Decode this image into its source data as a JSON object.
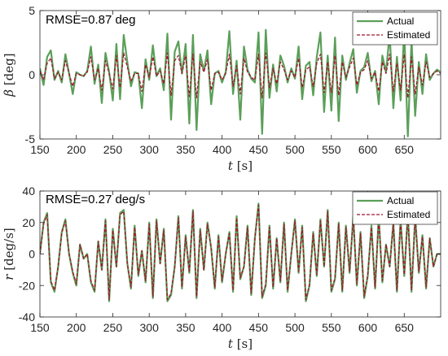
{
  "chart_data": [
    {
      "type": "line",
      "annotation": "RMSE=0.87 deg",
      "ylabel_symbol": "β",
      "ylabel_unit": "[deg]",
      "xlabel_symbol": "t",
      "xlabel_unit": "[s]",
      "xlim": [
        150,
        700
      ],
      "ylim": [
        -5,
        5
      ],
      "xticks": [
        150,
        200,
        250,
        300,
        350,
        400,
        450,
        500,
        550,
        600,
        650
      ],
      "yticks": [
        -5,
        0,
        5
      ],
      "legend_position": "top-right",
      "grid": false,
      "series": [
        {
          "name": "Actual",
          "style": "solid",
          "color": "#5b9f59",
          "x": [
            150,
            155,
            160,
            165,
            170,
            175,
            180,
            185,
            190,
            195,
            200,
            205,
            210,
            215,
            220,
            225,
            230,
            235,
            240,
            245,
            250,
            255,
            260,
            265,
            270,
            275,
            280,
            285,
            290,
            295,
            300,
            305,
            310,
            315,
            320,
            325,
            330,
            335,
            340,
            345,
            350,
            355,
            360,
            365,
            370,
            375,
            380,
            385,
            390,
            395,
            400,
            405,
            410,
            415,
            420,
            425,
            430,
            435,
            440,
            445,
            450,
            455,
            460,
            465,
            470,
            475,
            480,
            485,
            490,
            495,
            500,
            505,
            510,
            515,
            520,
            525,
            530,
            535,
            540,
            545,
            550,
            555,
            560,
            565,
            570,
            575,
            580,
            585,
            590,
            595,
            600,
            605,
            610,
            615,
            620,
            625,
            630,
            635,
            640,
            645,
            650,
            655,
            660,
            665,
            670,
            675,
            680,
            685,
            690,
            695,
            700
          ],
          "y": [
            0.5,
            -0.8,
            1.4,
            1.9,
            -0.4,
            0.3,
            -0.6,
            1.6,
            0.1,
            -1.5,
            0.2,
            0.0,
            -0.1,
            0.3,
            2.2,
            -0.7,
            0.8,
            -2.2,
            1.7,
            0.2,
            -2.0,
            2.4,
            -1.9,
            3.1,
            1.0,
            -0.9,
            0.2,
            0.1,
            -2.6,
            1.2,
            -0.4,
            2.3,
            -0.1,
            0.5,
            -1.2,
            3.2,
            -3.5,
            1.8,
            2.6,
            0.1,
            2.4,
            -3.8,
            3.1,
            -4.3,
            1.6,
            0.3,
            1.9,
            -2.3,
            0.1,
            0.3,
            -0.6,
            0.2,
            3.4,
            -1.5,
            1.1,
            -3.5,
            2.2,
            0.4,
            -0.3,
            -0.6,
            3.3,
            -4.6,
            3.5,
            -1.8,
            0.8,
            -1.3,
            1.5,
            0.7,
            -0.6,
            0.5,
            -0.3,
            2.2,
            -1.9,
            0.7,
            1.0,
            -1.6,
            1.4,
            3.3,
            -2.9,
            1.5,
            -2.8,
            2.9,
            -3.6,
            1.5,
            -0.4,
            0.9,
            2.0,
            -1.4,
            0.3,
            0.6,
            1.7,
            -0.5,
            0.3,
            -2.3,
            1.5,
            0.2,
            3.2,
            -2.6,
            1.4,
            -2.0,
            3.4,
            -4.8,
            2.7,
            -3.2,
            1.0,
            -1.5,
            1.6,
            -0.4,
            0.1,
            0.4,
            0.2
          ]
        },
        {
          "name": "Estimated",
          "style": "dashed",
          "color": "#a2142f",
          "x": [
            150,
            155,
            160,
            165,
            170,
            175,
            180,
            185,
            190,
            195,
            200,
            205,
            210,
            215,
            220,
            225,
            230,
            235,
            240,
            245,
            250,
            255,
            260,
            265,
            270,
            275,
            280,
            285,
            290,
            295,
            300,
            305,
            310,
            315,
            320,
            325,
            330,
            335,
            340,
            345,
            350,
            355,
            360,
            365,
            370,
            375,
            380,
            385,
            390,
            395,
            400,
            405,
            410,
            415,
            420,
            425,
            430,
            435,
            440,
            445,
            450,
            455,
            460,
            465,
            470,
            475,
            480,
            485,
            490,
            495,
            500,
            505,
            510,
            515,
            520,
            525,
            530,
            535,
            540,
            545,
            550,
            555,
            560,
            565,
            570,
            575,
            580,
            585,
            590,
            595,
            600,
            605,
            610,
            615,
            620,
            625,
            630,
            635,
            640,
            645,
            650,
            655,
            660,
            665,
            670,
            675,
            680,
            685,
            690,
            695,
            700
          ],
          "y": [
            0.3,
            -0.4,
            0.9,
            1.3,
            -0.3,
            0.2,
            -0.4,
            1.1,
            0.1,
            -0.9,
            0.1,
            0.0,
            -0.1,
            0.2,
            1.4,
            -0.4,
            0.5,
            -1.2,
            1.1,
            0.1,
            -1.1,
            1.5,
            -1.0,
            1.7,
            0.6,
            -0.5,
            0.1,
            0.1,
            -1.3,
            0.8,
            -0.2,
            1.4,
            -0.1,
            0.3,
            -0.7,
            1.7,
            -1.6,
            1.1,
            1.5,
            0.1,
            1.5,
            -1.7,
            1.6,
            -1.8,
            1.0,
            0.2,
            1.2,
            -1.2,
            0.1,
            0.2,
            -0.4,
            0.1,
            1.6,
            -0.9,
            0.7,
            -1.5,
            1.3,
            0.2,
            -0.2,
            -0.4,
            1.6,
            -1.8,
            1.7,
            -1.0,
            0.5,
            -0.7,
            1.0,
            0.4,
            -0.4,
            0.3,
            -0.2,
            1.3,
            -1.0,
            0.4,
            0.6,
            -0.9,
            0.9,
            1.6,
            -1.4,
            1.0,
            -1.4,
            1.5,
            -1.6,
            1.0,
            -0.2,
            0.6,
            1.3,
            -0.8,
            0.2,
            0.4,
            1.1,
            -0.3,
            0.2,
            -1.3,
            1.0,
            0.1,
            1.6,
            -1.3,
            0.9,
            -1.2,
            1.6,
            -1.8,
            1.4,
            -1.5,
            0.6,
            -0.8,
            1.0,
            -0.2,
            0.1,
            0.3,
            0.1
          ]
        }
      ]
    },
    {
      "type": "line",
      "annotation": "RMSE=0.27 deg/s",
      "ylabel_symbol": "r",
      "ylabel_unit": "[deg/s]",
      "xlabel_symbol": "t",
      "xlabel_unit": "[s]",
      "xlim": [
        150,
        700
      ],
      "ylim": [
        -40,
        40
      ],
      "xticks": [
        150,
        200,
        250,
        300,
        350,
        400,
        450,
        500,
        550,
        600,
        650
      ],
      "yticks": [
        -40,
        -20,
        0,
        20,
        40
      ],
      "legend_position": "top-right",
      "grid": false,
      "series": [
        {
          "name": "Actual",
          "style": "solid",
          "color": "#5b9f59",
          "x": [
            150,
            155,
            160,
            165,
            170,
            175,
            180,
            185,
            190,
            195,
            200,
            205,
            210,
            215,
            220,
            225,
            230,
            235,
            240,
            245,
            250,
            255,
            260,
            265,
            270,
            275,
            280,
            285,
            290,
            295,
            300,
            305,
            310,
            315,
            320,
            325,
            330,
            335,
            340,
            345,
            350,
            355,
            360,
            365,
            370,
            375,
            380,
            385,
            390,
            395,
            400,
            405,
            410,
            415,
            420,
            425,
            430,
            435,
            440,
            445,
            450,
            455,
            460,
            465,
            470,
            475,
            480,
            485,
            490,
            495,
            500,
            505,
            510,
            515,
            520,
            525,
            530,
            535,
            540,
            545,
            550,
            555,
            560,
            565,
            570,
            575,
            580,
            585,
            590,
            595,
            600,
            605,
            610,
            615,
            620,
            625,
            630,
            635,
            640,
            645,
            650,
            655,
            660,
            665,
            670,
            675,
            680,
            685,
            690,
            695,
            700
          ],
          "y": [
            0,
            20,
            26,
            -18,
            -24,
            -8,
            14,
            22,
            0,
            -12,
            -20,
            6,
            -3,
            0,
            -18,
            -24,
            8,
            -10,
            22,
            -30,
            16,
            -8,
            26,
            28,
            -6,
            -22,
            18,
            -14,
            2,
            -18,
            20,
            -28,
            22,
            -6,
            16,
            -30,
            -26,
            -8,
            24,
            -22,
            12,
            -12,
            28,
            -28,
            16,
            -10,
            20,
            4,
            -22,
            12,
            -18,
            0,
            14,
            -24,
            24,
            -16,
            -8,
            18,
            -26,
            10,
            32,
            -28,
            -20,
            18,
            -22,
            10,
            -18,
            20,
            -24,
            0,
            22,
            -12,
            18,
            -30,
            -20,
            14,
            -14,
            22,
            -8,
            28,
            -24,
            -16,
            20,
            -24,
            18,
            -12,
            24,
            -20,
            14,
            -28,
            -14,
            18,
            -22,
            24,
            -18,
            6,
            -8,
            20,
            -24,
            22,
            -14,
            26,
            -24,
            24,
            -12,
            12,
            -22,
            10,
            -8,
            0,
            0
          ]
        },
        {
          "name": "Estimated",
          "style": "dashed",
          "color": "#a2142f",
          "x": [
            150,
            155,
            160,
            165,
            170,
            175,
            180,
            185,
            190,
            195,
            200,
            205,
            210,
            215,
            220,
            225,
            230,
            235,
            240,
            245,
            250,
            255,
            260,
            265,
            270,
            275,
            280,
            285,
            290,
            295,
            300,
            305,
            310,
            315,
            320,
            325,
            330,
            335,
            340,
            345,
            350,
            355,
            360,
            365,
            370,
            375,
            380,
            385,
            390,
            395,
            400,
            405,
            410,
            415,
            420,
            425,
            430,
            435,
            440,
            445,
            450,
            455,
            460,
            465,
            470,
            475,
            480,
            485,
            490,
            495,
            500,
            505,
            510,
            515,
            520,
            525,
            530,
            535,
            540,
            545,
            550,
            555,
            560,
            565,
            570,
            575,
            580,
            585,
            590,
            595,
            600,
            605,
            610,
            615,
            620,
            625,
            630,
            635,
            640,
            645,
            650,
            655,
            660,
            665,
            670,
            675,
            680,
            685,
            690,
            695,
            700
          ],
          "y": [
            0,
            19,
            25,
            -17,
            -23,
            -8,
            13,
            21,
            0,
            -11,
            -19,
            6,
            -3,
            0,
            -17,
            -23,
            8,
            -10,
            21,
            -29,
            15,
            -8,
            25,
            27,
            -6,
            -21,
            17,
            -13,
            2,
            -17,
            19,
            -27,
            21,
            -6,
            15,
            -29,
            -25,
            -8,
            23,
            -21,
            11,
            -11,
            27,
            -27,
            15,
            -10,
            19,
            4,
            -21,
            11,
            -17,
            0,
            13,
            -23,
            23,
            -15,
            -8,
            17,
            -25,
            10,
            31,
            -27,
            -19,
            17,
            -21,
            10,
            -17,
            19,
            -23,
            0,
            21,
            -11,
            17,
            -29,
            -19,
            13,
            -13,
            21,
            -8,
            27,
            -23,
            -15,
            19,
            -23,
            17,
            -11,
            23,
            -19,
            13,
            -27,
            -13,
            17,
            -21,
            23,
            -17,
            6,
            -8,
            19,
            -23,
            21,
            -13,
            25,
            -23,
            23,
            -11,
            11,
            -21,
            10,
            -8,
            0,
            0
          ]
        }
      ]
    }
  ]
}
